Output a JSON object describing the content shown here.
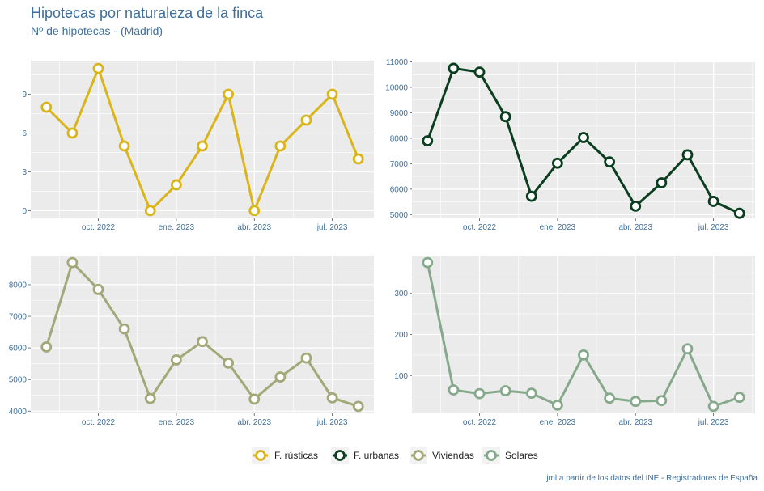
{
  "title": "Hipotecas por naturaleza de la finca",
  "subtitle": "Nº de hipotecas - (Madrid)",
  "caption": "jml a partir de los datos del INE - Registradores de España",
  "colors": {
    "panel_bg": "#ebebeb",
    "grid": "#ffffff",
    "axis_text": "#3f6f9a"
  },
  "chart_data": [
    {
      "type": "line",
      "series_name": "F. rústicas",
      "color": "#d9b51b",
      "x_months": [
        0,
        1,
        2,
        3,
        4,
        5,
        6,
        7,
        8,
        9,
        10,
        11,
        12
      ],
      "values": [
        8,
        6,
        11,
        5,
        0,
        2,
        5,
        9,
        0,
        5,
        7,
        9,
        4
      ],
      "y_ticks": [
        0,
        3,
        6,
        9
      ],
      "ylim": [
        -0.6,
        11.6
      ],
      "x_ticks": [
        {
          "label": "oct. 2022",
          "month": 2
        },
        {
          "label": "ene. 2023",
          "month": 5
        },
        {
          "label": "abr. 2023",
          "month": 8
        },
        {
          "label": "jul. 2023",
          "month": 11
        }
      ]
    },
    {
      "type": "line",
      "series_name": "F. urbanas",
      "color": "#0b3d1f",
      "x_months": [
        0,
        1,
        2,
        3,
        4,
        5,
        6,
        7,
        8,
        9,
        10,
        11,
        12
      ],
      "values": [
        7900,
        10750,
        10600,
        8850,
        5720,
        7020,
        8030,
        7070,
        5330,
        6250,
        7350,
        5520,
        5050
      ],
      "y_ticks": [
        5000,
        6000,
        7000,
        8000,
        9000,
        10000,
        11000
      ],
      "ylim": [
        4850,
        11050
      ],
      "x_ticks": [
        {
          "label": "oct. 2022",
          "month": 2
        },
        {
          "label": "ene. 2023",
          "month": 5
        },
        {
          "label": "abr. 2023",
          "month": 8
        },
        {
          "label": "jul. 2023",
          "month": 11
        }
      ]
    },
    {
      "type": "line",
      "series_name": "Viviendas",
      "color": "#a3a878",
      "x_months": [
        0,
        1,
        2,
        3,
        4,
        5,
        6,
        7,
        8,
        9,
        10,
        11,
        12
      ],
      "values": [
        6030,
        8700,
        7850,
        6600,
        4400,
        5620,
        6200,
        5520,
        4380,
        5080,
        5680,
        4420,
        4150
      ],
      "y_ticks": [
        4000,
        5000,
        6000,
        7000,
        8000
      ],
      "ylim": [
        3930,
        8920
      ],
      "x_ticks": [
        {
          "label": "oct. 2022",
          "month": 2
        },
        {
          "label": "ene. 2023",
          "month": 5
        },
        {
          "label": "abr. 2023",
          "month": 8
        },
        {
          "label": "jul. 2023",
          "month": 11
        }
      ]
    },
    {
      "type": "line",
      "series_name": "Solares",
      "color": "#86a98c",
      "x_months": [
        0,
        1,
        2,
        3,
        4,
        5,
        6,
        7,
        8,
        9,
        10,
        11,
        12
      ],
      "values": [
        375,
        65,
        56,
        63,
        57,
        28,
        150,
        45,
        37,
        39,
        165,
        25,
        47
      ],
      "y_ticks": [
        100,
        200,
        300
      ],
      "ylim": [
        8,
        392
      ],
      "x_ticks": [
        {
          "label": "oct. 2022",
          "month": 2
        },
        {
          "label": "ene. 2023",
          "month": 5
        },
        {
          "label": "abr. 2023",
          "month": 8
        },
        {
          "label": "jul. 2023",
          "month": 11
        }
      ]
    }
  ],
  "legend": [
    {
      "label": "F. rústicas",
      "color": "#d9b51b"
    },
    {
      "label": "F. urbanas",
      "color": "#0b3d1f"
    },
    {
      "label": "Viviendas",
      "color": "#a3a878"
    },
    {
      "label": "Solares",
      "color": "#86a98c"
    }
  ]
}
